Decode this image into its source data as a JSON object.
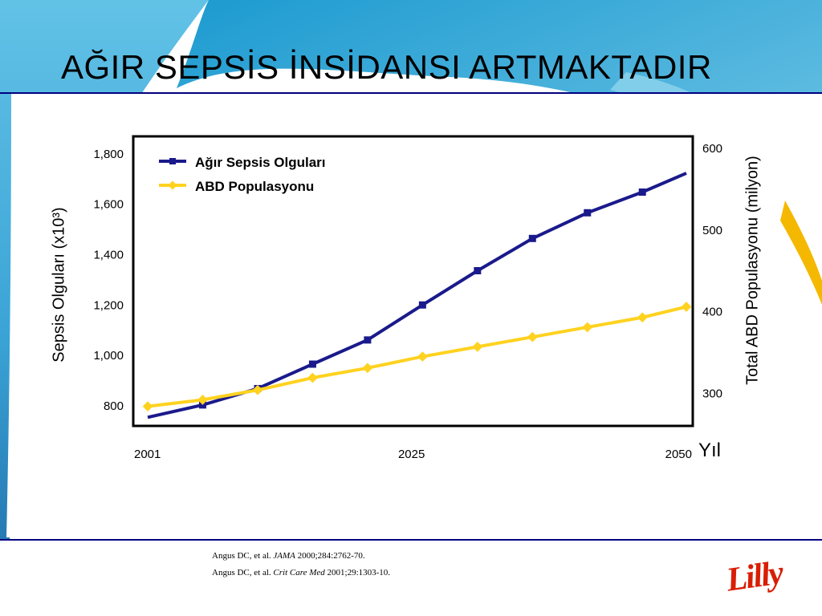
{
  "slide": {
    "title": "AĞIR SEPSİS İNSİDANSI ARTMAKTADIR",
    "references": [
      {
        "prefix": "Angus DC, et al. ",
        "journal": "JAMA",
        "suffix": " 2000;284:2762-70."
      },
      {
        "prefix": "Angus DC, et al. ",
        "journal": "Crit Care Med",
        "suffix": " 2001;29:1303-10."
      }
    ],
    "logo_text": "Lilly"
  },
  "colors": {
    "bg_teal": "#2a9fd0",
    "bg_light": "#5bbbe0",
    "bg_dark": "#1d6fa8",
    "accent_yellow": "#f5b800",
    "rule_navy": "#000080",
    "sepsis_line": "#1a1a8c",
    "population_line": "#ffd21f"
  },
  "chart_data": {
    "type": "line",
    "x_ticks": [
      "2001",
      "2025",
      "2050"
    ],
    "x_axis_title": "Yıl",
    "y_left": {
      "label": "Sepsis Olguları (x10³)",
      "ticks": [
        "800",
        "1,000",
        "1,200",
        "1,400",
        "1,600",
        "1,800"
      ],
      "range": [
        720,
        1860
      ]
    },
    "y_right": {
      "label": "Total ABD Populasyonu (milyon)",
      "ticks": [
        "300",
        "400",
        "500",
        "600"
      ],
      "range": [
        260,
        612
      ]
    },
    "x": [
      2001,
      2006,
      2011,
      2016,
      2021,
      2026,
      2031,
      2036,
      2041,
      2046,
      2050
    ],
    "series": [
      {
        "name": "Ağır Sepsis Olguları",
        "axis": "left",
        "color": "#1a1a8c",
        "marker": "square",
        "x": [
          2001,
          2006,
          2011,
          2016,
          2021,
          2026,
          2031,
          2036,
          2041,
          2046,
          2050
        ],
        "values": [
          751,
          800,
          865,
          962,
          1058,
          1197,
          1333,
          1461,
          1563,
          1645,
          1720
        ]
      },
      {
        "name": "ABD Populasyonu",
        "axis": "right",
        "color": "#ffd21f",
        "marker": "diamond",
        "x": [
          2001,
          2006,
          2011,
          2016,
          2021,
          2026,
          2031,
          2036,
          2041,
          2046,
          2050
        ],
        "values": [
          283,
          291,
          303,
          318,
          330,
          344,
          356,
          368,
          380,
          392,
          405
        ]
      }
    ],
    "legend_position": "top-left",
    "grid": false
  }
}
